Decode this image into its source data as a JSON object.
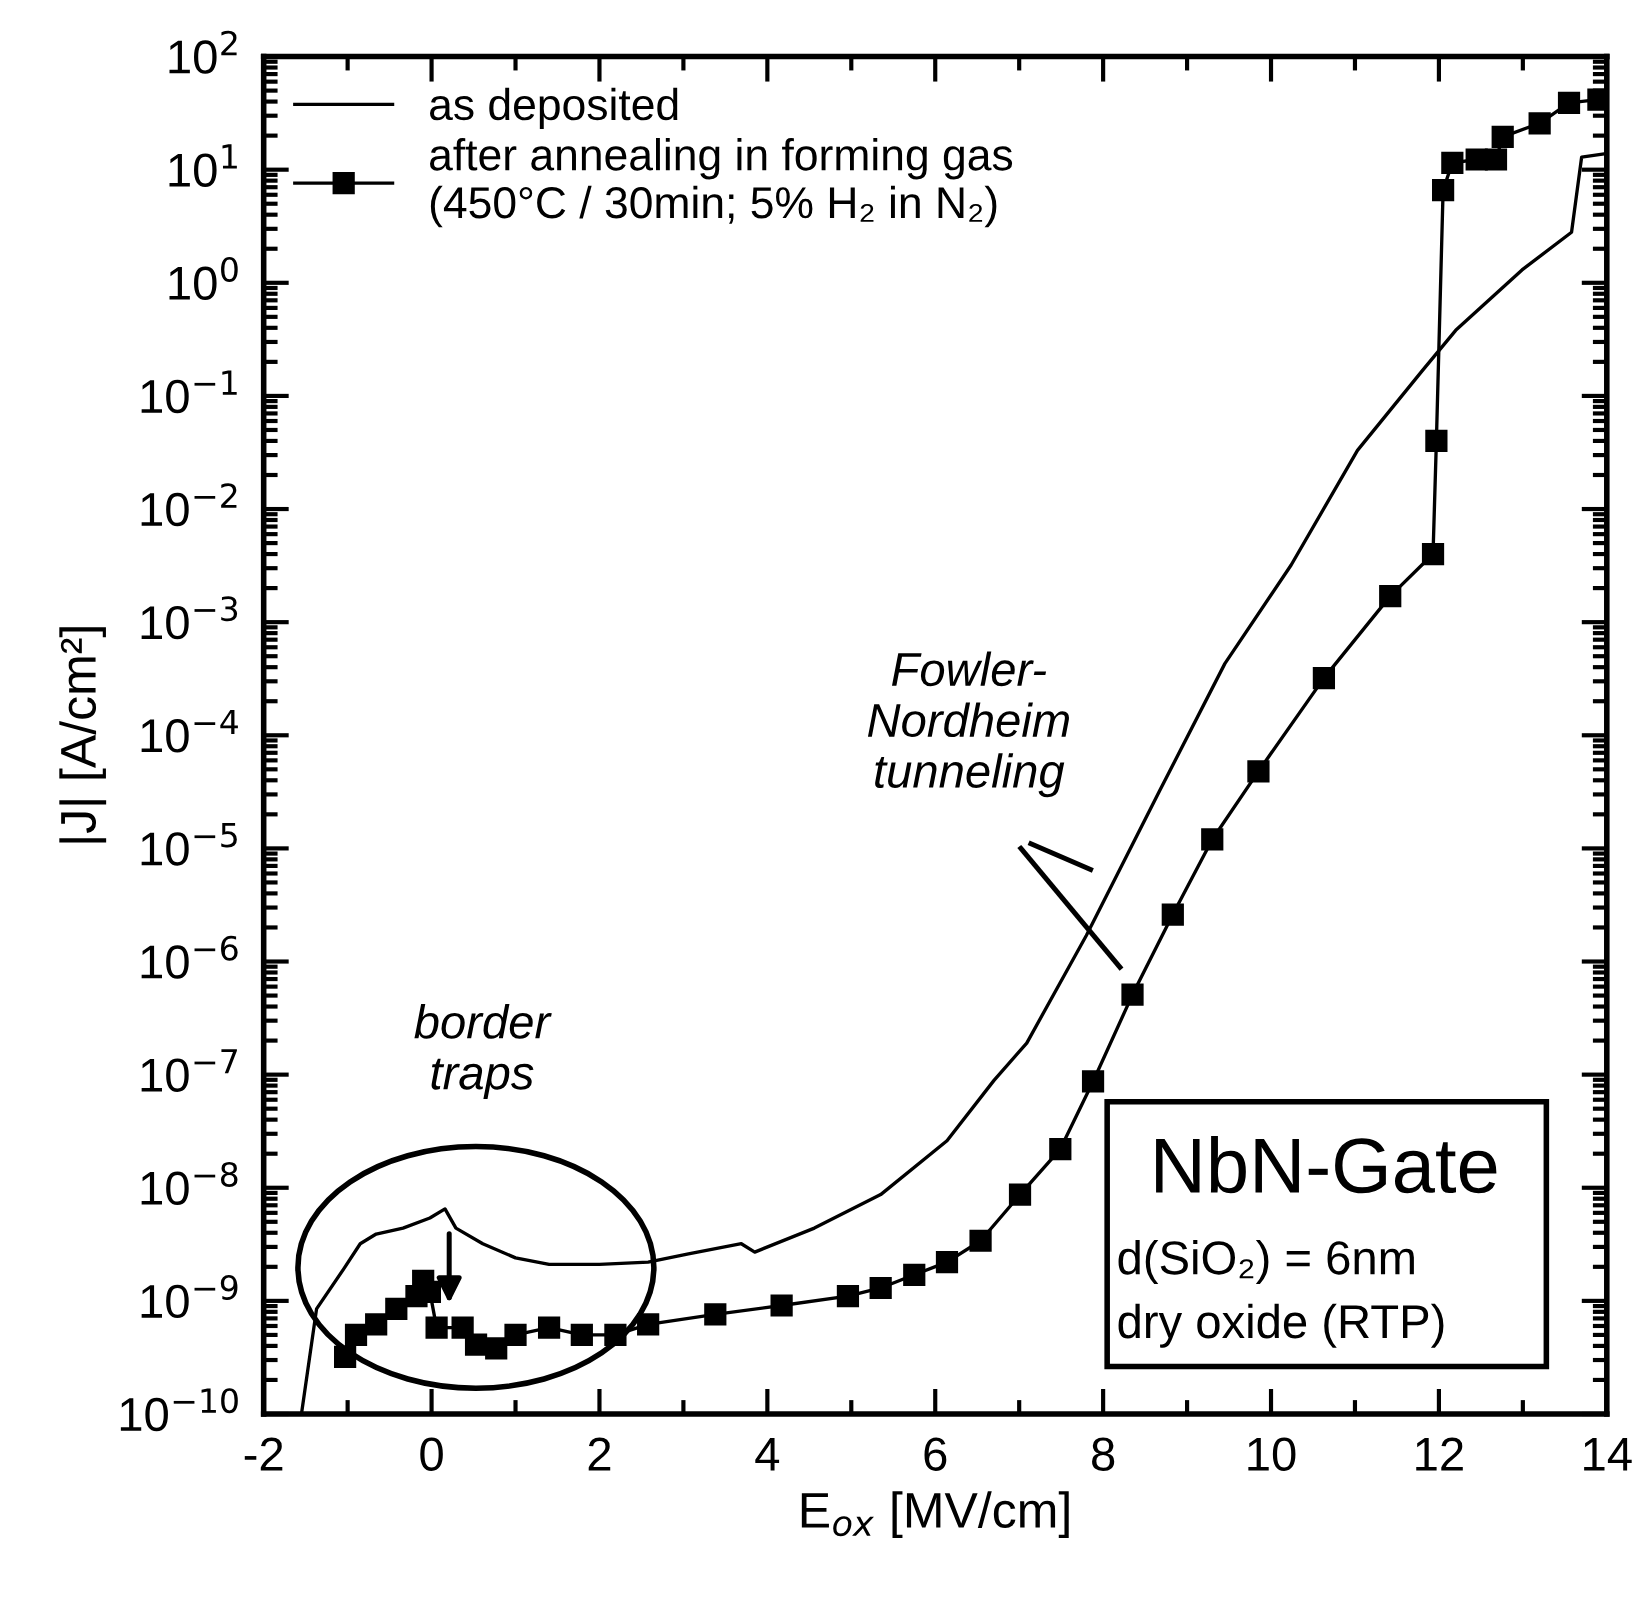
{
  "chart_data": {
    "type": "line",
    "xlabel": "E$_{ox}$ [MV/cm]",
    "ylabel": "|J| [A/cm²]",
    "xlim": [
      -2,
      14
    ],
    "xticks": [
      -2,
      0,
      2,
      4,
      6,
      8,
      10,
      12,
      14
    ],
    "ylim": [
      1e-10,
      100
    ],
    "log": "y",
    "yticks": [
      {
        "value": 1e-10,
        "label": "10$^{−10}$"
      },
      {
        "value": 1e-09,
        "label": "10$^{−9}$"
      },
      {
        "value": 1e-08,
        "label": "10$^{−8}$"
      },
      {
        "value": 1e-07,
        "label": "10$^{−7}$"
      },
      {
        "value": 1e-06,
        "label": "10$^{−6}$"
      },
      {
        "value": 1e-05,
        "label": "10$^{−5}$"
      },
      {
        "value": 0.0001,
        "label": "10$^{−4}$"
      },
      {
        "value": 0.001,
        "label": "10$^{−3}$"
      },
      {
        "value": 0.01,
        "label": "10$^{−2}$"
      },
      {
        "value": 0.1,
        "label": "10$^{−1}$"
      },
      {
        "value": 1,
        "label": "10$^{0}$"
      },
      {
        "value": 10,
        "label": "10$^{1}$"
      },
      {
        "value": 100,
        "label": "10$^{2}$"
      }
    ],
    "legend": "top left",
    "grid": false,
    "series": [
      {
        "name": "as deposited",
        "color": "#000000",
        "marker": "none",
        "x": [
          -1.55,
          -1.37,
          -1.05,
          -0.85,
          -0.66,
          -0.34,
          -0.02,
          0.16,
          0.29,
          0.61,
          1.0,
          1.4,
          2.0,
          2.58,
          3.06,
          3.69,
          3.85,
          4.56,
          5.35,
          6.14,
          6.7,
          7.09,
          7.8,
          8.67,
          9.45,
          10.24,
          11.03,
          11.81,
          12.2,
          12.99,
          13.58,
          13.7,
          13.97
        ],
        "values": [
          1e-10,
          8.5e-10,
          1.9e-09,
          3.2e-09,
          3.9e-09,
          4.4e-09,
          5.4e-09,
          6.5e-09,
          4.4e-09,
          3.2e-09,
          2.4e-09,
          2.1e-09,
          2.1e-09,
          2.2e-09,
          2.6e-09,
          3.2e-09,
          2.7e-09,
          4.4e-09,
          8.7e-09,
          2.6e-08,
          8.9e-08,
          1.9e-07,
          1.7e-06,
          3.2e-05,
          0.00043,
          0.0032,
          0.033,
          0.17,
          0.38,
          1.3,
          2.8,
          12.9,
          13.8
        ]
      },
      {
        "name": "after annealing in forming gas\n(450°C / 30min; 5% H₂ in N₂)",
        "color": "#000000",
        "marker": "square",
        "x": [
          -1.03,
          -0.9,
          -0.66,
          -0.42,
          -0.18,
          -0.1,
          -0.02,
          0.06,
          0.37,
          0.53,
          0.77,
          1.0,
          1.4,
          1.79,
          2.19,
          2.58,
          3.38,
          4.17,
          4.96,
          5.35,
          5.75,
          6.14,
          6.54,
          7.01,
          7.49,
          7.88,
          8.35,
          8.83,
          9.3,
          9.85,
          10.63,
          11.42,
          11.93,
          11.97,
          12.05,
          12.16,
          12.45,
          12.68,
          12.76,
          13.2,
          13.55,
          13.9
        ],
        "values": [
          3.2e-10,
          5e-10,
          6.2e-10,
          8.5e-10,
          1.1e-09,
          1.5e-09,
          1.2e-09,
          5.8e-10,
          5.8e-10,
          4.1e-10,
          3.8e-10,
          5e-10,
          5.8e-10,
          5e-10,
          5e-10,
          6.2e-10,
          7.6e-10,
          9.1e-10,
          1.1e-09,
          1.3e-09,
          1.7e-09,
          2.2e-09,
          3.4e-09,
          8.7e-09,
          2.2e-08,
          8.7e-08,
          5.1e-07,
          2.6e-06,
          1.2e-05,
          4.8e-05,
          0.00032,
          0.0017,
          0.004,
          0.04,
          6.6,
          11.5,
          12.3,
          12.3,
          19.5,
          25.7,
          38.9,
          41.7
        ]
      }
    ],
    "annotations": [
      "Fowler-\nNordheim\ntunneling",
      "border\ntraps",
      "NbN-Gate",
      "d(SiO₂) = 6nm",
      "dry oxide (RTP)"
    ]
  }
}
